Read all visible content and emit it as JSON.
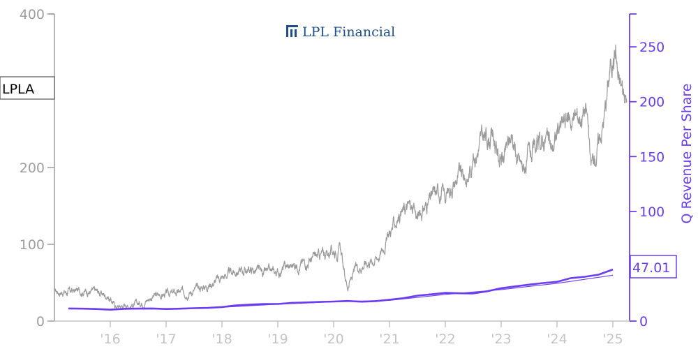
{
  "brand": {
    "logo_text": "LPL Financial"
  },
  "ticker": "LPLA",
  "current_value_label": "47.01",
  "colors": {
    "price": "#9a9a9a",
    "revenue": "#6a3df0",
    "revenue_trend": "#6a3df0",
    "left_axis": "#9e9e9e",
    "bottom_axis": "#c4c4c4",
    "logo": "#1f4e8c"
  },
  "chart_data": {
    "type": "line",
    "title": "",
    "ylabel_left": "",
    "ylabel_right": "Q Revenue Per Share",
    "ylim_left": [
      0,
      400
    ],
    "ylim_right": [
      0,
      280
    ],
    "yticks_left": [
      0,
      100,
      200,
      400
    ],
    "yticks_right": [
      0,
      50,
      100,
      150,
      200,
      250
    ],
    "xlim": [
      2015.0,
      2025.3
    ],
    "xticks": [
      {
        "x": 2016,
        "label": "'16"
      },
      {
        "x": 2017,
        "label": "'17"
      },
      {
        "x": 2018,
        "label": "'18"
      },
      {
        "x": 2019,
        "label": "'19"
      },
      {
        "x": 2020,
        "label": "'20"
      },
      {
        "x": 2021,
        "label": "'21"
      },
      {
        "x": 2022,
        "label": "'22"
      },
      {
        "x": 2023,
        "label": "'23"
      },
      {
        "x": 2024,
        "label": "'24"
      },
      {
        "x": 2025,
        "label": "'25"
      }
    ],
    "grid": false,
    "series": [
      {
        "axis": "left",
        "points": [
          [
            2015.0,
            39
          ],
          [
            2015.25,
            38
          ],
          [
            2015.5,
            40
          ],
          [
            2015.75,
            38
          ],
          [
            2015.95,
            33
          ],
          [
            2016.1,
            19
          ],
          [
            2016.3,
            21
          ],
          [
            2016.5,
            22
          ],
          [
            2016.75,
            32
          ],
          [
            2017.0,
            35
          ],
          [
            2017.25,
            37
          ],
          [
            2017.5,
            40
          ],
          [
            2017.75,
            47
          ],
          [
            2018.0,
            57
          ],
          [
            2018.25,
            65
          ],
          [
            2018.5,
            67
          ],
          [
            2018.75,
            62
          ],
          [
            2019.0,
            63
          ],
          [
            2019.15,
            70
          ],
          [
            2019.25,
            72
          ],
          [
            2019.5,
            77
          ],
          [
            2019.75,
            85
          ],
          [
            2020.0,
            92
          ],
          [
            2020.12,
            94
          ],
          [
            2020.2,
            58
          ],
          [
            2020.25,
            45
          ],
          [
            2020.4,
            68
          ],
          [
            2020.6,
            78
          ],
          [
            2020.75,
            82
          ],
          [
            2020.85,
            90
          ],
          [
            2021.0,
            115
          ],
          [
            2021.2,
            140
          ],
          [
            2021.35,
            150
          ],
          [
            2021.5,
            135
          ],
          [
            2021.6,
            145
          ],
          [
            2021.75,
            160
          ],
          [
            2021.9,
            170
          ],
          [
            2022.0,
            162
          ],
          [
            2022.1,
            175
          ],
          [
            2022.25,
            190
          ],
          [
            2022.4,
            185
          ],
          [
            2022.5,
            215
          ],
          [
            2022.65,
            235
          ],
          [
            2022.85,
            245
          ],
          [
            2022.95,
            215
          ],
          [
            2023.05,
            210
          ],
          [
            2023.2,
            245
          ],
          [
            2023.3,
            208
          ],
          [
            2023.4,
            200
          ],
          [
            2023.5,
            212
          ],
          [
            2023.65,
            220
          ],
          [
            2023.8,
            242
          ],
          [
            2023.9,
            220
          ],
          [
            2024.0,
            245
          ],
          [
            2024.15,
            262
          ],
          [
            2024.35,
            265
          ],
          [
            2024.5,
            278
          ],
          [
            2024.55,
            262
          ],
          [
            2024.6,
            200
          ],
          [
            2024.7,
            218
          ],
          [
            2024.85,
            270
          ],
          [
            2024.95,
            330
          ],
          [
            2025.05,
            358
          ],
          [
            2025.1,
            312
          ],
          [
            2025.18,
            302
          ],
          [
            2025.25,
            285
          ]
        ]
      },
      {
        "axis": "right",
        "points": [
          [
            2015.25,
            11.5
          ],
          [
            2015.5,
            11.3
          ],
          [
            2015.75,
            11.0
          ],
          [
            2016.0,
            10.4
          ],
          [
            2016.25,
            11.2
          ],
          [
            2016.5,
            11.4
          ],
          [
            2016.75,
            11.5
          ],
          [
            2017.0,
            11.0
          ],
          [
            2017.25,
            11.3
          ],
          [
            2017.5,
            11.8
          ],
          [
            2017.75,
            12.0
          ],
          [
            2018.0,
            12.8
          ],
          [
            2018.25,
            14.3
          ],
          [
            2018.5,
            15.0
          ],
          [
            2018.75,
            15.6
          ],
          [
            2019.0,
            15.6
          ],
          [
            2019.25,
            16.6
          ],
          [
            2019.5,
            17.0
          ],
          [
            2019.75,
            17.5
          ],
          [
            2020.0,
            17.8
          ],
          [
            2020.25,
            18.3
          ],
          [
            2020.5,
            17.7
          ],
          [
            2020.75,
            18.2
          ],
          [
            2021.0,
            19.5
          ],
          [
            2021.25,
            20.9
          ],
          [
            2021.5,
            23.2
          ],
          [
            2021.75,
            24.4
          ],
          [
            2022.0,
            25.7
          ],
          [
            2022.25,
            25.3
          ],
          [
            2022.5,
            25.2
          ],
          [
            2022.75,
            27.2
          ],
          [
            2023.0,
            30.0
          ],
          [
            2023.25,
            31.6
          ],
          [
            2023.5,
            33.2
          ],
          [
            2023.75,
            34.7
          ],
          [
            2024.0,
            35.8
          ],
          [
            2024.25,
            39.2
          ],
          [
            2024.5,
            40.4
          ],
          [
            2024.75,
            42.4
          ],
          [
            2025.0,
            47.01
          ]
        ]
      },
      {
        "axis": "right",
        "points": [
          [
            2016.0,
            10.9
          ],
          [
            2017.0,
            11.2
          ],
          [
            2018.0,
            12.6
          ],
          [
            2019.0,
            15.4
          ],
          [
            2020.0,
            17.5
          ],
          [
            2021.0,
            18.9
          ],
          [
            2022.0,
            24.3
          ],
          [
            2023.0,
            28.7
          ],
          [
            2024.0,
            34.4
          ],
          [
            2025.0,
            41.8
          ]
        ]
      }
    ]
  }
}
